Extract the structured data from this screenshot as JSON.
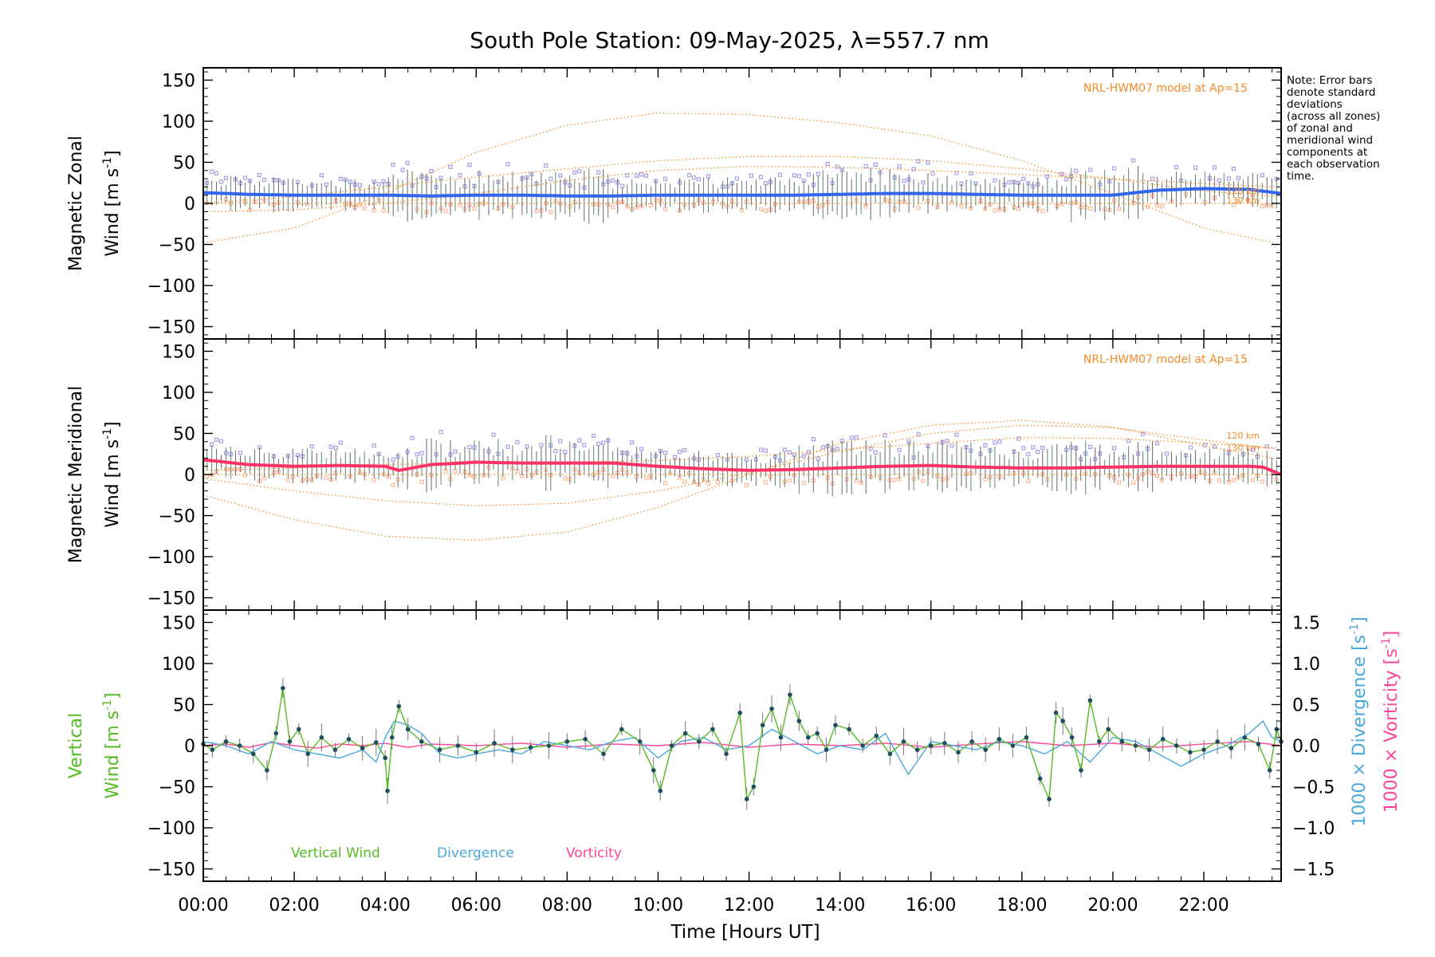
{
  "title": "South Pole Station: 09-May-2025, λ=557.7 nm",
  "note_lines": [
    "Note: Error bars",
    "denote standard",
    "deviations",
    "(across all zones)",
    "of zonal and",
    "meridional wind",
    "components at",
    "each observation",
    "time."
  ],
  "colors": {
    "zonal": "#3366ee",
    "meridional": "#ff3366",
    "vertical": "#55bb22",
    "divergence": "#4aa8dd",
    "vorticity": "#ff4499",
    "model": "#f28c28",
    "scatter_blue": "#a99ee6",
    "scatter_orange": "#ffb899",
    "axis": "#000000"
  },
  "chart_data": {
    "type": "line",
    "x_label": "Time [Hours UT]",
    "x_ticks": [
      "00:00",
      "02:00",
      "04:00",
      "06:00",
      "08:00",
      "10:00",
      "12:00",
      "14:00",
      "16:00",
      "18:00",
      "20:00",
      "22:00"
    ],
    "x_tick_hours": [
      0,
      2,
      4,
      6,
      8,
      10,
      12,
      14,
      16,
      18,
      20,
      22
    ],
    "xlim": [
      0,
      23.7
    ],
    "y_ticks": [
      "150",
      "100",
      "50",
      "0",
      "−50",
      "−100",
      "−150"
    ],
    "y_tick_values": [
      150,
      100,
      50,
      0,
      -50,
      -100,
      -150
    ],
    "ylim": [
      -165,
      165
    ],
    "panels": [
      {
        "name": "zonal",
        "ylabel_line1": "Magnetic Zonal",
        "ylabel_line2": "Wind",
        "ylabel_units": "[m s",
        "ylabel_exp": "-1",
        "ylabel_close": "]",
        "model_label": "NRL-HWM07 model at Ap=15",
        "model_alt_labels": [
          "130 km",
          "120 km"
        ],
        "mean_series": {
          "name": "Zonal mean",
          "hours": [
            0,
            1,
            2,
            3,
            4,
            5,
            6,
            7,
            8,
            9,
            10,
            11,
            12,
            13,
            14,
            15,
            16,
            17,
            18,
            19,
            20,
            21,
            22,
            23,
            23.7
          ],
          "values": [
            13,
            11,
            10,
            10,
            10,
            9,
            10,
            10,
            9,
            9,
            10,
            10,
            10,
            10,
            11,
            12,
            12,
            11,
            10,
            10,
            10,
            16,
            18,
            17,
            12
          ]
        },
        "model_curves": [
          {
            "name": "HWM07 a",
            "hours": [
              0,
              2,
              4,
              6,
              8,
              10,
              12,
              14,
              16,
              18,
              20,
              22,
              23.7
            ],
            "values": [
              -48,
              -30,
              12,
              62,
              95,
              110,
              108,
              98,
              82,
              52,
              12,
              -30,
              -50
            ]
          },
          {
            "name": "HWM07 b",
            "hours": [
              0,
              2,
              4,
              6,
              8,
              10,
              12,
              14,
              16,
              18,
              20,
              22,
              23.7
            ],
            "values": [
              0,
              8,
              20,
              32,
              42,
              52,
              57,
              57,
              52,
              42,
              30,
              15,
              8
            ]
          },
          {
            "name": "HWM07 c",
            "hours": [
              0,
              2,
              4,
              6,
              8,
              10,
              12,
              14,
              16,
              18,
              20,
              22,
              23.7
            ],
            "values": [
              -10,
              -8,
              0,
              12,
              28,
              40,
              45,
              44,
              40,
              35,
              30,
              24,
              20
            ]
          },
          {
            "name": "HWM07 d",
            "hours": [
              0,
              23.7
            ],
            "values": [
              0,
              0
            ]
          }
        ]
      },
      {
        "name": "meridional",
        "ylabel_line1": "Magnetic Meridional",
        "ylabel_line2": "Wind",
        "ylabel_units": "[m s",
        "ylabel_exp": "-1",
        "ylabel_close": "]",
        "model_label": "NRL-HWM07 model at Ap=15",
        "model_alt_labels": [
          "120 km",
          "130 km"
        ],
        "mean_series": {
          "name": "Meridional mean",
          "hours": [
            0,
            0.5,
            1,
            1.5,
            2,
            3,
            4,
            4.3,
            5,
            6,
            7,
            8,
            9,
            10,
            11,
            12,
            13,
            14,
            15,
            16,
            17,
            18,
            19,
            20,
            21,
            22,
            23,
            23.3,
            23.7
          ],
          "values": [
            18,
            15,
            12,
            11,
            10,
            11,
            10,
            5,
            12,
            15,
            14,
            14,
            14,
            10,
            7,
            5,
            6,
            8,
            10,
            11,
            9,
            8,
            8,
            9,
            10,
            10,
            10,
            9,
            0
          ]
        },
        "model_curves": [
          {
            "name": "HWM07 a",
            "hours": [
              0,
              2,
              4,
              6,
              8,
              10,
              12,
              14,
              16,
              18,
              20,
              22,
              23.7
            ],
            "values": [
              -25,
              -55,
              -75,
              -80,
              -70,
              -40,
              0,
              38,
              60,
              66,
              58,
              35,
              18
            ]
          },
          {
            "name": "HWM07 b",
            "hours": [
              0,
              2,
              4,
              6,
              8,
              10,
              12,
              14,
              16,
              18,
              20,
              22,
              23.7
            ],
            "values": [
              -5,
              -20,
              -32,
              -38,
              -35,
              -20,
              2,
              28,
              50,
              60,
              57,
              42,
              30
            ]
          },
          {
            "name": "HWM07 c",
            "hours": [
              0,
              2,
              4,
              6,
              8,
              10,
              12,
              14,
              16,
              18,
              20,
              22,
              23.7
            ],
            "values": [
              5,
              8,
              12,
              14,
              15,
              17,
              22,
              30,
              38,
              45,
              44,
              38,
              32
            ]
          },
          {
            "name": "HWM07 d",
            "hours": [
              0,
              23.7
            ],
            "values": [
              0,
              0
            ]
          }
        ]
      },
      {
        "name": "vertical",
        "ylabel_line1": "Vertical",
        "ylabel_line2": "Wind",
        "ylabel_units": "[m s",
        "ylabel_exp": "-1",
        "ylabel_close": "]",
        "right_ticks": [
          "1.5",
          "1.0",
          "0.5",
          "0.0",
          "−0.5",
          "−1.0",
          "−1.5"
        ],
        "right_tick_values": [
          1.5,
          1.0,
          0.5,
          0.0,
          -0.5,
          -1.0,
          -1.5
        ],
        "right_ylim": [
          -1.65,
          1.65
        ],
        "right_label_div": "1000 × Divergence [s",
        "right_label_vor": "1000 × Vorticity [s",
        "right_label_exp": "-1",
        "right_label_close": "]",
        "legend": [
          "Vertical Wind",
          "Divergence",
          "Vorticity"
        ],
        "series": [
          {
            "name": "Vertical Wind",
            "hours": [
              0,
              0.2,
              0.5,
              0.8,
              1.1,
              1.4,
              1.6,
              1.75,
              1.9,
              2.1,
              2.3,
              2.6,
              2.9,
              3.2,
              3.5,
              3.8,
              4.0,
              4.05,
              4.15,
              4.3,
              4.5,
              4.8,
              5.2,
              5.6,
              6.0,
              6.4,
              6.8,
              7.2,
              7.6,
              8.0,
              8.4,
              8.8,
              9.2,
              9.6,
              9.9,
              10.05,
              10.3,
              10.6,
              10.9,
              11.2,
              11.5,
              11.8,
              11.95,
              12.1,
              12.3,
              12.5,
              12.7,
              12.9,
              13.1,
              13.3,
              13.5,
              13.7,
              13.9,
              14.2,
              14.5,
              14.8,
              15.1,
              15.4,
              15.7,
              16.0,
              16.3,
              16.6,
              16.9,
              17.2,
              17.5,
              17.8,
              18.1,
              18.4,
              18.6,
              18.75,
              18.9,
              19.1,
              19.3,
              19.5,
              19.7,
              19.9,
              20.2,
              20.5,
              20.8,
              21.1,
              21.4,
              21.7,
              22.0,
              22.3,
              22.6,
              22.9,
              23.2,
              23.45,
              23.6,
              23.7
            ],
            "values": [
              2,
              -5,
              5,
              0,
              -10,
              -30,
              15,
              70,
              5,
              20,
              -10,
              10,
              -5,
              8,
              -3,
              4,
              -15,
              -55,
              10,
              48,
              20,
              5,
              -5,
              0,
              -8,
              3,
              -5,
              -2,
              0,
              5,
              8,
              -10,
              20,
              5,
              -30,
              -55,
              0,
              15,
              5,
              20,
              -10,
              40,
              -65,
              -50,
              25,
              45,
              10,
              62,
              30,
              10,
              15,
              -5,
              25,
              20,
              0,
              12,
              -10,
              5,
              -5,
              0,
              3,
              -8,
              5,
              -5,
              8,
              0,
              10,
              -40,
              -65,
              40,
              30,
              10,
              -30,
              55,
              5,
              20,
              5,
              0,
              -5,
              8,
              0,
              -8,
              -5,
              5,
              -3,
              10,
              2,
              -30,
              20,
              5
            ]
          },
          {
            "name": "Divergence",
            "hours": [
              0,
              0.5,
              1.0,
              1.5,
              2.0,
              2.5,
              3.0,
              3.5,
              3.8,
              4.0,
              4.2,
              4.5,
              4.8,
              5.2,
              5.6,
              6.0,
              6.5,
              7.0,
              7.5,
              8.0,
              8.5,
              9.0,
              9.5,
              10.0,
              10.5,
              11.0,
              11.5,
              12.0,
              12.5,
              13.0,
              13.5,
              14.0,
              14.5,
              15.0,
              15.5,
              16.0,
              16.5,
              17.0,
              17.5,
              18.0,
              18.5,
              19.0,
              19.5,
              20.0,
              20.5,
              21.0,
              21.5,
              22.0,
              22.5,
              23.0,
              23.3,
              23.5,
              23.7
            ],
            "values": [
              0.05,
              0.0,
              -0.1,
              0.05,
              -0.05,
              -0.1,
              -0.15,
              -0.05,
              -0.2,
              0.1,
              0.3,
              0.25,
              0.15,
              -0.1,
              -0.15,
              -0.1,
              -0.05,
              -0.1,
              0.05,
              0.0,
              -0.05,
              0.05,
              0.1,
              -0.15,
              0.05,
              0.1,
              -0.05,
              0.0,
              0.2,
              0.05,
              -0.1,
              0.0,
              -0.05,
              0.15,
              -0.35,
              0.05,
              0.0,
              -0.05,
              0.05,
              0.0,
              -0.1,
              0.05,
              -0.2,
              0.1,
              0.05,
              -0.1,
              -0.25,
              -0.1,
              0.0,
              0.15,
              0.3,
              0.1,
              0.05
            ]
          },
          {
            "name": "Vorticity",
            "hours": [
              0,
              0.5,
              1.0,
              1.5,
              2.0,
              2.5,
              3.0,
              3.5,
              4.0,
              4.5,
              5.0,
              6.0,
              7.0,
              8.0,
              9.0,
              10.0,
              11.0,
              12.0,
              13.0,
              14.0,
              15.0,
              16.0,
              17.0,
              18.0,
              19.0,
              20.0,
              21.0,
              22.0,
              23.0,
              23.7
            ],
            "values": [
              0.0,
              0.02,
              -0.02,
              0.04,
              0.0,
              -0.03,
              0.02,
              0.0,
              0.03,
              -0.02,
              0.02,
              0.0,
              0.03,
              -0.02,
              0.02,
              0.0,
              0.04,
              -0.02,
              0.02,
              0.0,
              0.03,
              -0.02,
              0.02,
              0.05,
              0.0,
              0.03,
              -0.02,
              0.02,
              0.05,
              0.0
            ]
          }
        ]
      }
    ]
  }
}
